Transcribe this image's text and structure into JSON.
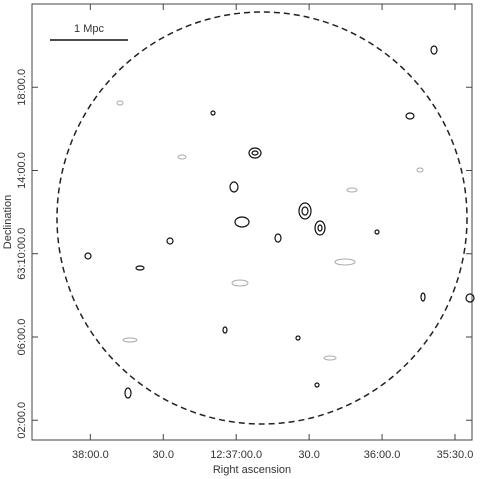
{
  "chart_data": {
    "type": "contour",
    "xlabel": "Right ascension",
    "ylabel": "Declination",
    "annotation": "1 Mpc",
    "xlim": [
      45504,
      45323
    ],
    "xticks": [
      {
        "value": 45480,
        "label": "38:00.0"
      },
      {
        "value": 45450,
        "label": "30.0"
      },
      {
        "value": 45420,
        "label": "12:37:00.0"
      },
      {
        "value": 45390,
        "label": "30.0"
      },
      {
        "value": 45360,
        "label": "36:00.0"
      },
      {
        "value": 45330,
        "label": "35:30.0"
      }
    ],
    "ylim": [
      3781.05,
      3802
    ],
    "yticks": [
      {
        "value": 3782,
        "label": "02:00.0"
      },
      {
        "value": 3786,
        "label": "06:00.0"
      },
      {
        "value": 3790,
        "label": "63:10:00.0"
      },
      {
        "value": 3794,
        "label": "14:00.0"
      },
      {
        "value": 3798,
        "label": "18:00.0"
      }
    ]
  }
}
